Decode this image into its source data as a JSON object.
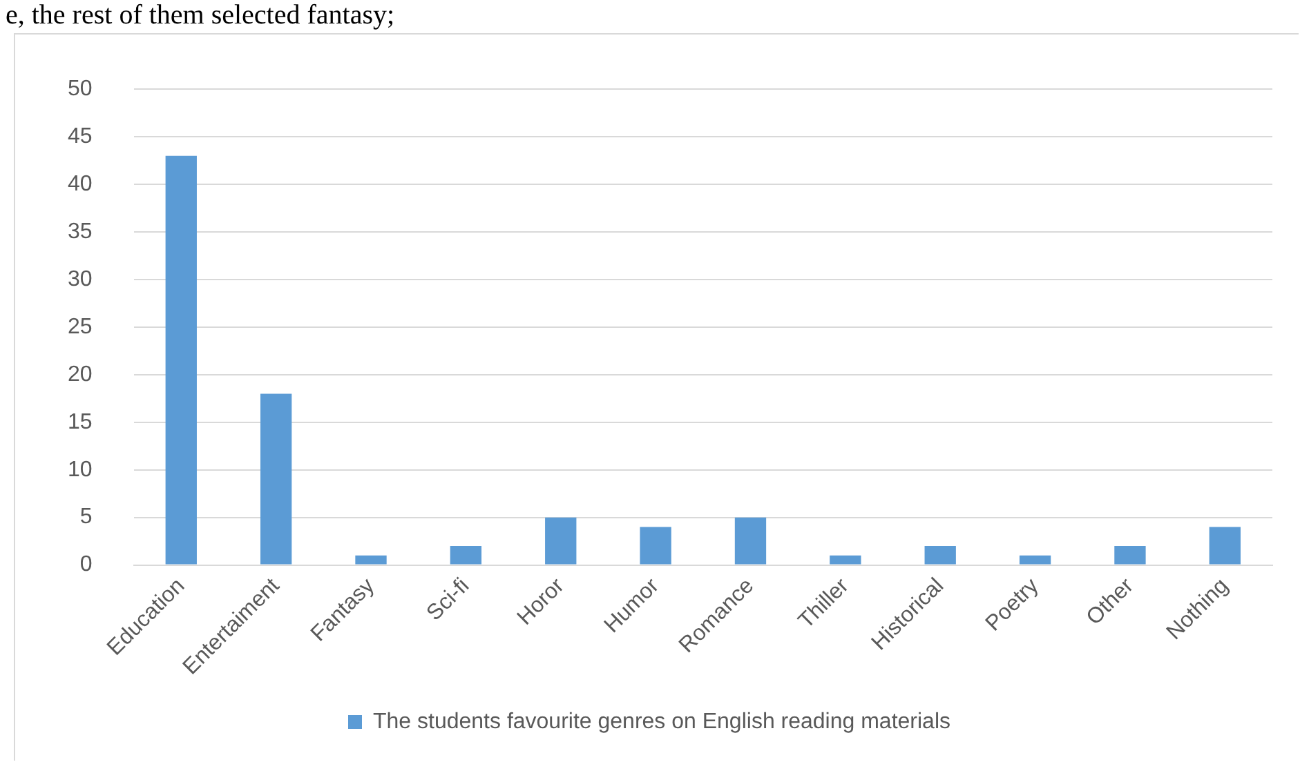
{
  "chart_data": {
    "type": "bar",
    "annotations": [
      "e, the rest of them selected fantasy;"
    ],
    "categories": [
      "Education",
      "Entertaiment",
      "Fantasy",
      "Sci-fi",
      "Horor",
      "Humor",
      "Romance",
      "Thiller",
      "Historical",
      "Poetry",
      "Other",
      "Nothing"
    ],
    "series": [
      {
        "name": "The students favourite genres on English reading materials",
        "color": "#5b9bd5",
        "values": [
          43,
          18,
          1,
          2,
          5,
          4,
          5,
          1,
          2,
          1,
          2,
          4
        ]
      }
    ],
    "ylim": [
      0,
      50
    ],
    "yticks": [
      0,
      5,
      10,
      15,
      20,
      25,
      30,
      35,
      40,
      45,
      50
    ],
    "grid": "y",
    "legend": "bottom"
  }
}
